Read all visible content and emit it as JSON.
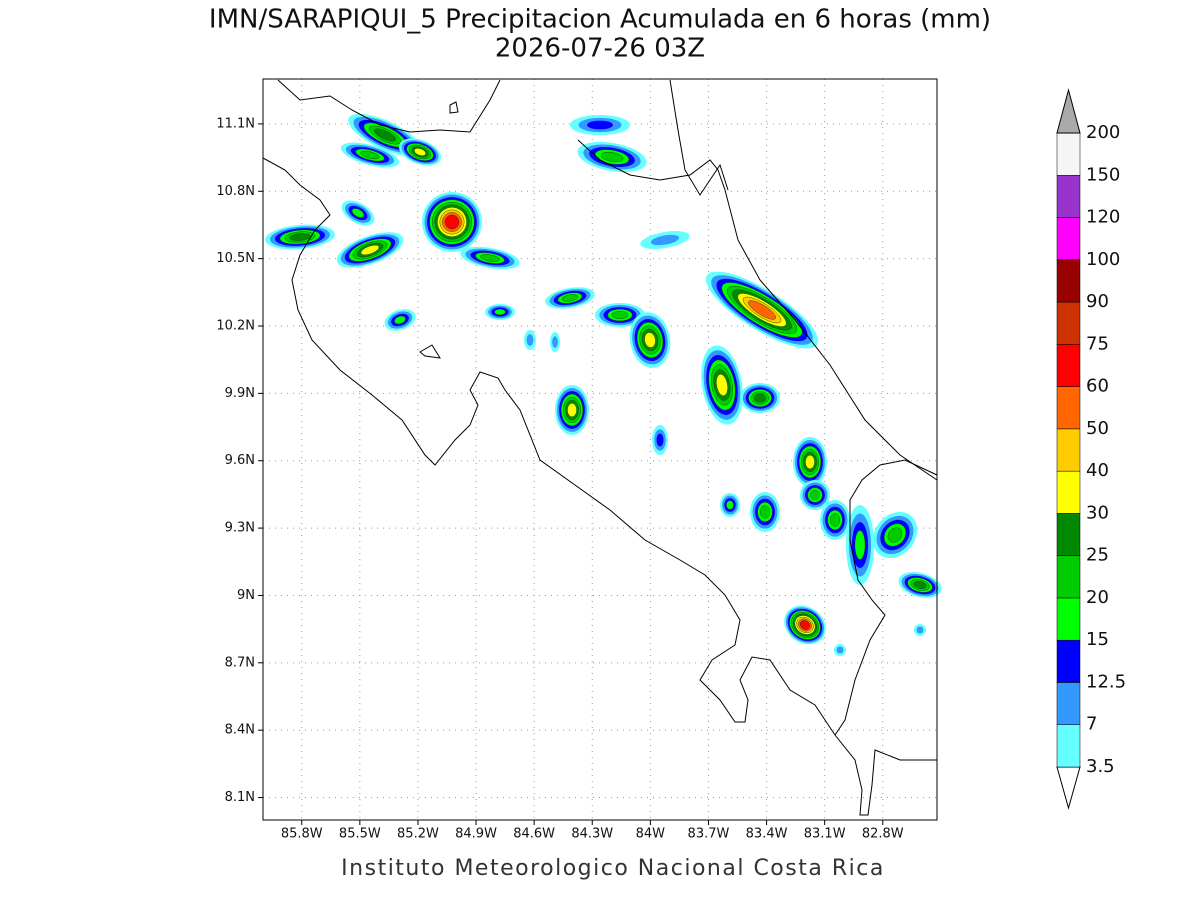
{
  "chart_data": {
    "type": "map",
    "title": "IMN/SARAPIQUI_5 Precipitacion Acumulada en 6 horas (mm)",
    "subtitle": "2026-07-26 03Z",
    "footer": "Instituto Meteorologico Nacional Costa Rica",
    "xlim": [
      -86.0,
      -82.52
    ],
    "ylim": [
      8.0,
      11.3
    ],
    "grid": true,
    "xticks": [
      {
        "value": -85.8,
        "label": "85.8W"
      },
      {
        "value": -85.5,
        "label": "85.5W"
      },
      {
        "value": -85.2,
        "label": "85.2W"
      },
      {
        "value": -84.9,
        "label": "84.9W"
      },
      {
        "value": -84.6,
        "label": "84.6W"
      },
      {
        "value": -84.3,
        "label": "84.3W"
      },
      {
        "value": -84.0,
        "label": "84W"
      },
      {
        "value": -83.7,
        "label": "83.7W"
      },
      {
        "value": -83.4,
        "label": "83.4W"
      },
      {
        "value": -83.1,
        "label": "83.1W"
      },
      {
        "value": -82.8,
        "label": "82.8W"
      }
    ],
    "yticks": [
      {
        "value": 8.1,
        "label": "8.1N"
      },
      {
        "value": 8.4,
        "label": "8.4N"
      },
      {
        "value": 8.7,
        "label": "8.7N"
      },
      {
        "value": 9.0,
        "label": "9N"
      },
      {
        "value": 9.3,
        "label": "9.3N"
      },
      {
        "value": 9.6,
        "label": "9.6N"
      },
      {
        "value": 9.9,
        "label": "9.9N"
      },
      {
        "value": 10.2,
        "label": "10.2N"
      },
      {
        "value": 10.5,
        "label": "10.5N"
      },
      {
        "value": 10.8,
        "label": "10.8N"
      },
      {
        "value": 11.1,
        "label": "11.1N"
      }
    ],
    "colorbar": {
      "levels": [
        3.5,
        7,
        12.5,
        15,
        20,
        25,
        30,
        40,
        50,
        60,
        75,
        90,
        100,
        120,
        150,
        200
      ],
      "colors": [
        "#ffffff",
        "#66ffff",
        "#3399ff",
        "#0000ff",
        "#00ff00",
        "#00cc00",
        "#008800",
        "#ffff00",
        "#ffcc00",
        "#ff6600",
        "#ff0000",
        "#cc3300",
        "#990000",
        "#ff00ff",
        "#9933cc",
        "#f5f5f5",
        "#aaaaaa"
      ]
    }
  }
}
